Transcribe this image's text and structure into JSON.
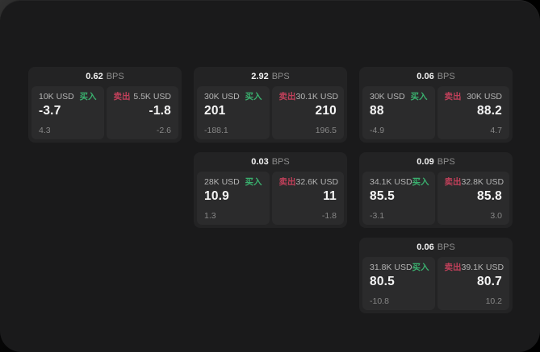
{
  "labels": {
    "buy": "买入",
    "sell": "卖出",
    "bps_unit": "BPS"
  },
  "colors": {
    "app_bg": "#1a1a1b",
    "card_bg": "#232324",
    "panel_bg": "#2b2b2c",
    "buy_green": "#3aaf6e",
    "sell_red": "#c0405a",
    "value_text": "#f5f5f5",
    "muted_text": "#878787"
  },
  "cards": [
    {
      "row": 0,
      "col": 0,
      "bps": "0.62",
      "left": {
        "size": "10K USD",
        "value": "-3.7",
        "sub": "4.3"
      },
      "right": {
        "size": "5.5K USD",
        "value": "-1.8",
        "sub": "-2.6"
      }
    },
    {
      "row": 0,
      "col": 1,
      "bps": "2.92",
      "left": {
        "size": "30K USD",
        "value": "201",
        "sub": "-188.1"
      },
      "right": {
        "size": "30.1K USD",
        "value": "210",
        "sub": "196.5"
      }
    },
    {
      "row": 0,
      "col": 2,
      "bps": "0.06",
      "left": {
        "size": "30K USD",
        "value": "88",
        "sub": "-4.9"
      },
      "right": {
        "size": "30K USD",
        "value": "88.2",
        "sub": "4.7"
      }
    },
    {
      "row": 1,
      "col": 1,
      "bps": "0.03",
      "left": {
        "size": "28K USD",
        "value": "10.9",
        "sub": "1.3"
      },
      "right": {
        "size": "32.6K USD",
        "value": "11",
        "sub": "-1.8"
      }
    },
    {
      "row": 1,
      "col": 2,
      "bps": "0.09",
      "left": {
        "size": "34.1K USD",
        "value": "85.5",
        "sub": "-3.1"
      },
      "right": {
        "size": "32.8K USD",
        "value": "85.8",
        "sub": "3.0"
      }
    },
    {
      "row": 2,
      "col": 2,
      "bps": "0.06",
      "left": {
        "size": "31.8K USD",
        "value": "80.5",
        "sub": "-10.8"
      },
      "right": {
        "size": "39.1K USD",
        "value": "80.7",
        "sub": "10.2"
      }
    }
  ]
}
